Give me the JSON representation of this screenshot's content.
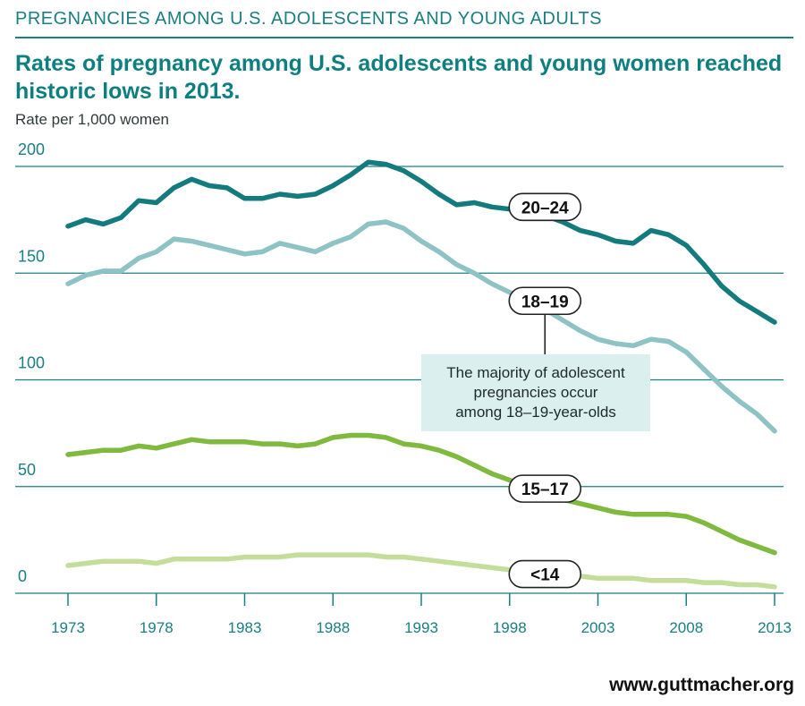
{
  "header": {
    "title": "PREGNANCIES AMONG U.S. ADOLESCENTS AND YOUNG ADULTS",
    "subtitle": "Rates of pregnancy among U.S. adolescents and young women reached historic lows in 2013."
  },
  "source": "www.guttmacher.org",
  "colors": {
    "teal_dark": "#137b7d",
    "teal_light": "#8ec3c5",
    "green_dark": "#7fb93e",
    "green_light": "#c4dd9a",
    "axis": "#1a7f82",
    "callout_bg": "#dcefef"
  },
  "chart_data": {
    "type": "line",
    "title": "Rates of pregnancy among U.S. adolescents and young women reached historic lows in 2013.",
    "ylabel": "Rate per 1,000 women",
    "xlabel": "",
    "ylim": [
      0,
      200
    ],
    "xlim": [
      1973,
      2013
    ],
    "yticks": [
      0,
      50,
      100,
      150,
      200
    ],
    "xticks": [
      1973,
      1978,
      1983,
      1988,
      1993,
      1998,
      2003,
      2008,
      2013
    ],
    "grid": true,
    "x": [
      1973,
      1974,
      1975,
      1976,
      1977,
      1978,
      1979,
      1980,
      1981,
      1982,
      1983,
      1984,
      1985,
      1986,
      1987,
      1988,
      1989,
      1990,
      1991,
      1992,
      1993,
      1994,
      1995,
      1996,
      1997,
      1998,
      1999,
      2000,
      2001,
      2002,
      2003,
      2004,
      2005,
      2006,
      2007,
      2008,
      2009,
      2010,
      2011,
      2012,
      2013
    ],
    "series": [
      {
        "name": "20–24",
        "color": "#137b7d",
        "values": [
          172,
          175,
          173,
          176,
          184,
          183,
          190,
          194,
          191,
          190,
          185,
          185,
          187,
          186,
          187,
          191,
          196,
          202,
          201,
          198,
          193,
          187,
          182,
          183,
          181,
          180,
          179,
          177,
          174,
          170,
          168,
          165,
          164,
          170,
          168,
          163,
          154,
          144,
          137,
          132,
          127
        ]
      },
      {
        "name": "18–19",
        "color": "#8ec3c5",
        "values": [
          145,
          149,
          151,
          151,
          157,
          160,
          166,
          165,
          163,
          161,
          159,
          160,
          164,
          162,
          160,
          164,
          167,
          173,
          174,
          171,
          165,
          160,
          154,
          150,
          145,
          141,
          137,
          133,
          128,
          123,
          119,
          117,
          116,
          119,
          118,
          113,
          105,
          97,
          90,
          84,
          76
        ]
      },
      {
        "name": "15–17",
        "color": "#7fb93e",
        "values": [
          65,
          66,
          67,
          67,
          69,
          68,
          70,
          72,
          71,
          71,
          71,
          70,
          70,
          69,
          70,
          73,
          74,
          74,
          73,
          70,
          69,
          67,
          64,
          60,
          56,
          53,
          50,
          47,
          44,
          42,
          40,
          38,
          37,
          37,
          37,
          36,
          33,
          29,
          25,
          22,
          19
        ]
      },
      {
        "name": "<14",
        "color": "#c4dd9a",
        "values": [
          13,
          14,
          15,
          15,
          15,
          14,
          16,
          16,
          16,
          16,
          17,
          17,
          17,
          18,
          18,
          18,
          18,
          18,
          17,
          17,
          16,
          15,
          14,
          13,
          12,
          11,
          10,
          10,
          9,
          8,
          7,
          7,
          7,
          6,
          6,
          6,
          5,
          5,
          4,
          4,
          3
        ]
      }
    ],
    "series_labels": [
      {
        "text": "20–24",
        "at_year": 2000,
        "at_value": 181
      },
      {
        "text": "18–19",
        "at_year": 2000,
        "at_value": 137
      },
      {
        "text": "15–17",
        "at_year": 2000,
        "at_value": 49
      },
      {
        "text": "<14",
        "at_year": 2000,
        "at_value": 9
      }
    ],
    "annotation": {
      "text_lines": [
        "The majority of adolescent",
        "pregnancies occur",
        "among 18–19-year-olds"
      ],
      "points_to": "18–19"
    }
  }
}
